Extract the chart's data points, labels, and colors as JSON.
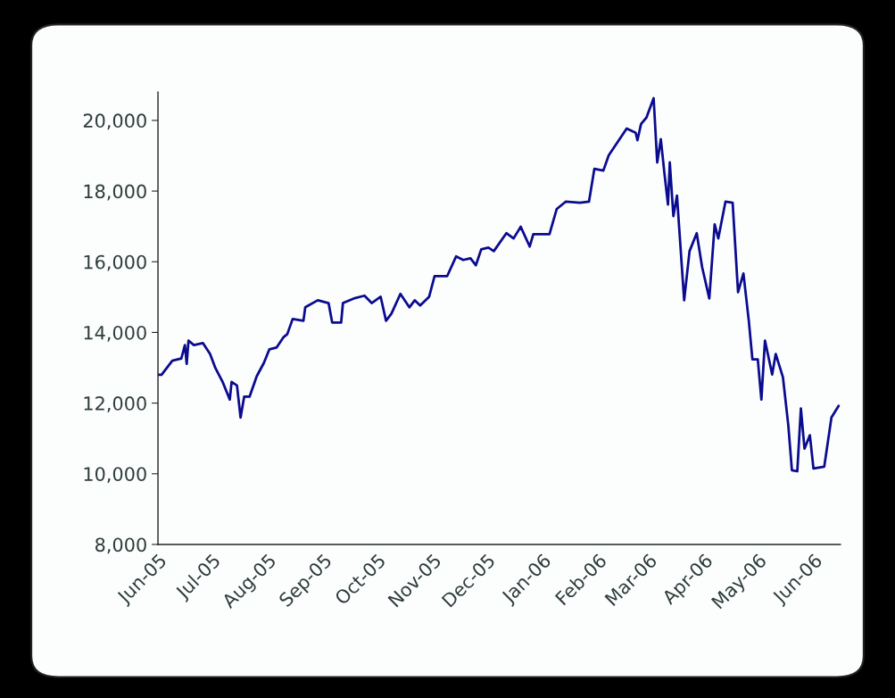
{
  "chart_data": {
    "type": "line",
    "x": [
      "2005-06-01",
      "2005-06-03",
      "2005-06-09",
      "2005-06-14",
      "2005-06-16",
      "2005-06-17",
      "2005-06-18",
      "2005-06-21",
      "2005-06-26",
      "2005-06-30",
      "2005-07-03",
      "2005-07-07",
      "2005-07-11",
      "2005-07-12",
      "2005-07-15",
      "2005-07-17",
      "2005-07-19",
      "2005-07-22",
      "2005-07-26",
      "2005-07-30",
      "2005-08-02",
      "2005-08-06",
      "2005-08-10",
      "2005-08-12",
      "2005-08-15",
      "2005-08-21",
      "2005-08-22",
      "2005-08-29",
      "2005-09-04",
      "2005-09-06",
      "2005-09-11",
      "2005-09-12",
      "2005-09-18",
      "2005-09-24",
      "2005-09-28",
      "2005-10-03",
      "2005-10-06",
      "2005-10-09",
      "2005-10-14",
      "2005-10-19",
      "2005-10-22",
      "2005-10-25",
      "2005-10-30",
      "2005-11-02",
      "2005-11-09",
      "2005-11-14",
      "2005-11-18",
      "2005-11-22",
      "2005-11-25",
      "2005-11-28",
      "2005-12-02",
      "2005-12-05",
      "2005-12-12",
      "2005-12-16",
      "2005-12-20",
      "2005-12-25",
      "2005-12-27",
      "2006-01-05",
      "2006-01-09",
      "2006-01-14",
      "2006-01-22",
      "2006-01-27",
      "2006-01-30",
      "2006-02-04",
      "2006-02-07",
      "2006-02-12",
      "2006-02-17",
      "2006-02-22",
      "2006-02-23",
      "2006-02-25",
      "2006-02-28",
      "2006-03-04",
      "2006-03-06",
      "2006-03-08",
      "2006-03-10",
      "2006-03-12",
      "2006-03-13",
      "2006-03-15",
      "2006-03-17",
      "2006-03-21",
      "2006-03-24",
      "2006-03-28",
      "2006-03-31",
      "2006-04-04",
      "2006-04-07",
      "2006-04-09",
      "2006-04-13",
      "2006-04-17",
      "2006-04-20",
      "2006-04-23",
      "2006-04-26",
      "2006-04-28",
      "2006-05-01",
      "2006-05-03",
      "2006-05-05",
      "2006-05-09",
      "2006-05-11",
      "2006-05-15",
      "2006-05-18",
      "2006-05-20",
      "2006-05-23",
      "2006-05-25",
      "2006-05-27",
      "2006-05-30",
      "2006-06-01",
      "2006-06-07",
      "2006-06-11",
      "2006-06-15"
    ],
    "series": [
      {
        "color": "#0b0b8f",
        "values": [
          12800,
          12800,
          13200,
          13260,
          13640,
          13110,
          13770,
          13640,
          13700,
          13390,
          12990,
          12600,
          12100,
          12600,
          12500,
          11590,
          12180,
          12180,
          12760,
          13140,
          13520,
          13570,
          13870,
          13950,
          14380,
          14330,
          14710,
          14910,
          14830,
          14280,
          14280,
          14830,
          14960,
          15040,
          14830,
          15010,
          14330,
          14530,
          15090,
          14710,
          14910,
          14760,
          15010,
          15590,
          15590,
          16150,
          16050,
          16100,
          15900,
          16350,
          16400,
          16300,
          16810,
          16660,
          16990,
          16430,
          16780,
          16780,
          17490,
          17700,
          17670,
          17700,
          18630,
          18580,
          19010,
          19390,
          19770,
          19650,
          19440,
          19900,
          20080,
          20630,
          18810,
          19470,
          18510,
          17620,
          18810,
          17290,
          17870,
          14910,
          16300,
          16810,
          15850,
          14960,
          17060,
          16660,
          17700,
          17670,
          15140,
          15670,
          14330,
          13240,
          13240,
          12100,
          13770,
          12810,
          13390,
          12730,
          11370,
          10100,
          10070,
          11850,
          10710,
          11090,
          10150,
          10200,
          11590,
          11920
        ]
      }
    ],
    "xlim": [
      "2005-06-01",
      "2006-06-16"
    ],
    "xticks": [
      {
        "value": "2005-06-01",
        "label": "Jun-05"
      },
      {
        "value": "2005-07-01",
        "label": "Jul-05"
      },
      {
        "value": "2005-08-01",
        "label": "Aug-05"
      },
      {
        "value": "2005-09-01",
        "label": "Sep-05"
      },
      {
        "value": "2005-10-01",
        "label": "Oct-05"
      },
      {
        "value": "2005-11-01",
        "label": "Nov-05"
      },
      {
        "value": "2005-12-01",
        "label": "Dec-05"
      },
      {
        "value": "2006-01-01",
        "label": "Jan-06"
      },
      {
        "value": "2006-02-01",
        "label": "Feb-06"
      },
      {
        "value": "2006-03-01",
        "label": "Mar-06"
      },
      {
        "value": "2006-04-01",
        "label": "Apr-06"
      },
      {
        "value": "2006-05-01",
        "label": "May-06"
      },
      {
        "value": "2006-06-01",
        "label": "Jun-06"
      }
    ],
    "ylim": [
      8000,
      20800
    ],
    "yticks": [
      {
        "value": 8000,
        "label": "8,000"
      },
      {
        "value": 10000,
        "label": "10,000"
      },
      {
        "value": 12000,
        "label": "12,000"
      },
      {
        "value": 14000,
        "label": "14,000"
      },
      {
        "value": 16000,
        "label": "16,000"
      },
      {
        "value": 18000,
        "label": "18,000"
      },
      {
        "value": 20000,
        "label": "20,000"
      }
    ],
    "grid": false,
    "legend": false,
    "marker": "none",
    "line_style": "solid"
  }
}
